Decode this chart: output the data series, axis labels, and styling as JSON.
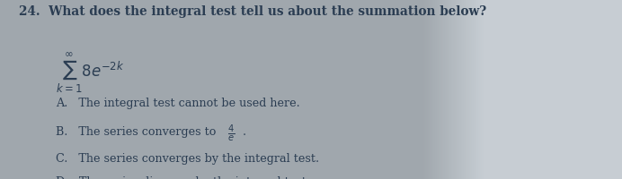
{
  "title_number": "24.",
  "title_text": "  What does the integral test tell us about the summation below?",
  "summation_latex": "$\\sum_{k=1}^{\\infty} 8e^{-2k}$",
  "option_A": "A.   The integral test cannot be used here.",
  "option_B_pre": "B.   The series converges to ",
  "option_B_frac": "$\\frac{4}{e}$",
  "option_B_post": ".",
  "option_C": "C.   The series converges by the integral test.",
  "option_D": "D.   The series diverges by the integral test.",
  "bg_color_left": "#b8bfc7",
  "bg_color_right": "#c8d0d8",
  "text_color": "#2b3d52",
  "font_size_title": 9.8,
  "font_size_body": 9.2,
  "font_size_sum": 12
}
